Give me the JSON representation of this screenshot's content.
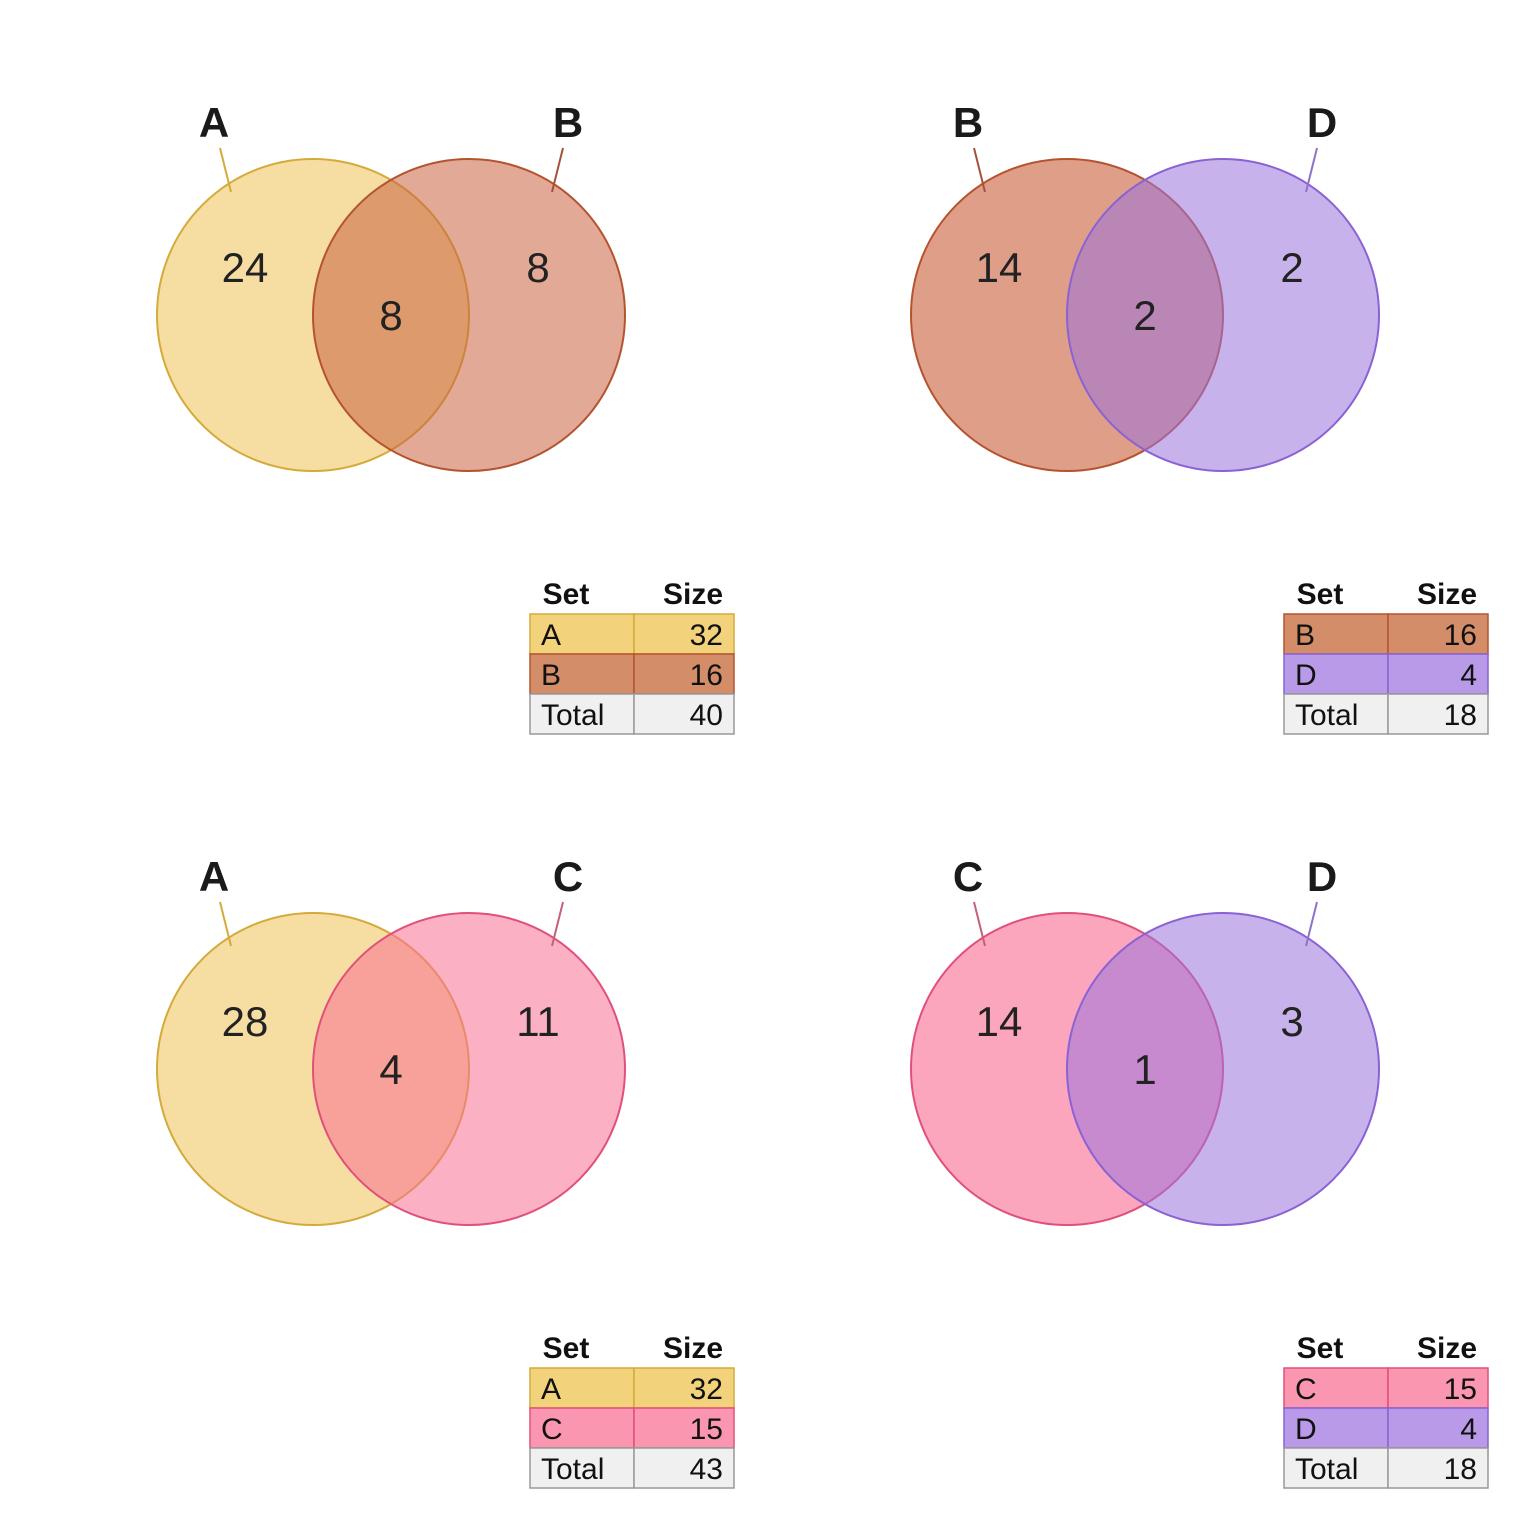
{
  "colors": {
    "A": "#f0c96a",
    "B": "#c9633f",
    "C": "#fa6f94",
    "D": "#9a72dd"
  },
  "table_header": {
    "set": "Set",
    "size": "Size"
  },
  "total_label": "Total",
  "diagrams": [
    {
      "sets": [
        "A",
        "B"
      ],
      "counts": {
        "left": "24",
        "both": "8",
        "right": "8"
      },
      "table": [
        {
          "set": "A",
          "size": "32",
          "fill": "#f2d27a",
          "border": "#d4aa3a"
        },
        {
          "set": "B",
          "size": "16",
          "fill": "#d38e69",
          "border": "#b5532f"
        }
      ],
      "total": "40"
    },
    {
      "sets": [
        "B",
        "D"
      ],
      "counts": {
        "left": "14",
        "both": "2",
        "right": "2"
      },
      "table": [
        {
          "set": "B",
          "size": "16",
          "fill": "#d38e69",
          "border": "#b5532f"
        },
        {
          "set": "D",
          "size": "4",
          "fill": "#b89ae8",
          "border": "#8a62d4"
        }
      ],
      "total": "18"
    },
    {
      "sets": [
        "A",
        "C"
      ],
      "counts": {
        "left": "28",
        "both": "4",
        "right": "11"
      },
      "table": [
        {
          "set": "A",
          "size": "32",
          "fill": "#f2d27a",
          "border": "#d4aa3a"
        },
        {
          "set": "C",
          "size": "15",
          "fill": "#fb96b0",
          "border": "#e0507a"
        }
      ],
      "total": "43"
    },
    {
      "sets": [
        "C",
        "D"
      ],
      "counts": {
        "left": "14",
        "both": "1",
        "right": "3"
      },
      "table": [
        {
          "set": "C",
          "size": "15",
          "fill": "#fb96b0",
          "border": "#e0507a"
        },
        {
          "set": "D",
          "size": "4",
          "fill": "#b89ae8",
          "border": "#8a62d4"
        }
      ],
      "total": "18"
    }
  ]
}
